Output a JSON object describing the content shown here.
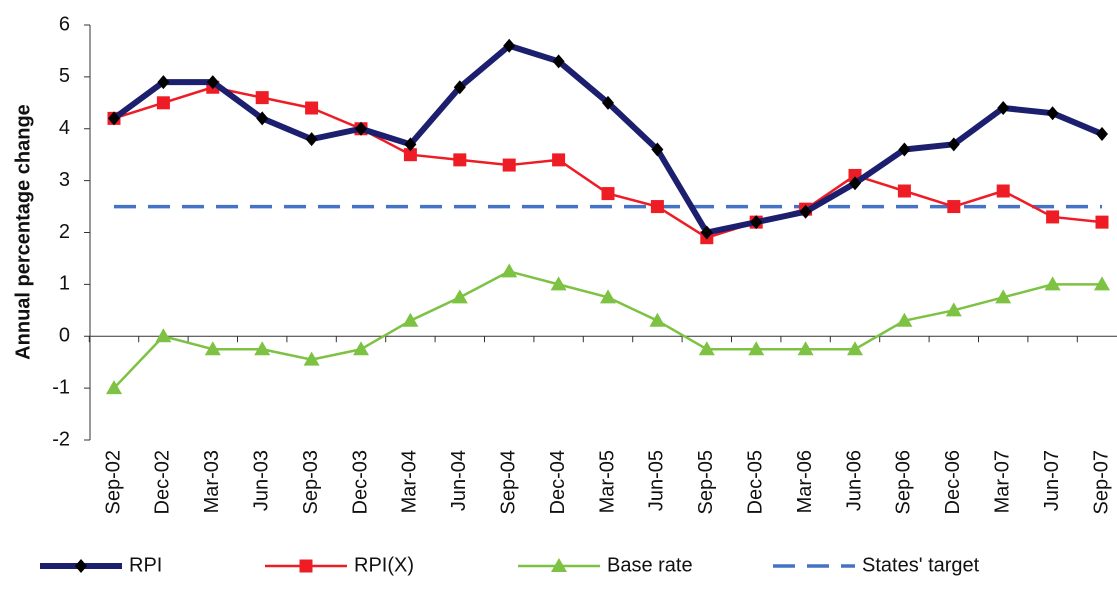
{
  "chart_data": {
    "type": "line",
    "y_label": "Annual percentage change",
    "categories": [
      "Sep-02",
      "Dec-02",
      "Mar-03",
      "Jun-03",
      "Sep-03",
      "Dec-03",
      "Mar-04",
      "Jun-04",
      "Sep-04",
      "Dec-04",
      "Mar-05",
      "Jun-05",
      "Sep-05",
      "Dec-05",
      "Mar-06",
      "Jun-06",
      "Sep-06",
      "Dec-06",
      "Mar-07",
      "Jun-07",
      "Sep-07"
    ],
    "series": [
      {
        "name": "RPI",
        "color": "#1c1f6e",
        "marker": "diamond",
        "marker_color": "#000000",
        "width": 6,
        "values": [
          4.2,
          4.9,
          4.9,
          4.2,
          3.8,
          4.0,
          3.7,
          4.8,
          5.6,
          5.3,
          4.5,
          3.6,
          2.0,
          2.2,
          2.4,
          2.95,
          3.6,
          3.7,
          4.4,
          4.3,
          3.9
        ]
      },
      {
        "name": "RPI(X)",
        "color": "#ee1c25",
        "marker": "square",
        "marker_color": "#ee1c25",
        "width": 2.5,
        "values": [
          4.2,
          4.5,
          4.8,
          4.6,
          4.4,
          4.0,
          3.5,
          3.4,
          3.3,
          3.4,
          2.75,
          2.5,
          1.9,
          2.2,
          2.45,
          3.1,
          2.8,
          2.5,
          2.8,
          2.3,
          2.2
        ]
      },
      {
        "name": "Base rate",
        "color": "#7dc242",
        "marker": "triangle",
        "marker_color": "#7dc242",
        "width": 2.5,
        "values": [
          -1,
          0,
          -0.25,
          -0.25,
          -0.45,
          -0.25,
          0.3,
          0.75,
          1.25,
          1.0,
          0.75,
          0.3,
          -0.25,
          -0.25,
          -0.25,
          -0.25,
          0.3,
          0.5,
          0.75,
          1.0,
          1.0
        ]
      },
      {
        "name": "States' target",
        "color": "#4472c4",
        "marker": "none",
        "dashed": true,
        "width": 3.5,
        "values": [
          2.5,
          2.5,
          2.5,
          2.5,
          2.5,
          2.5,
          2.5,
          2.5,
          2.5,
          2.5,
          2.5,
          2.5,
          2.5,
          2.5,
          2.5,
          2.5,
          2.5,
          2.5,
          2.5,
          2.5,
          2.5
        ]
      }
    ],
    "ylim": [
      -2,
      6
    ],
    "yticks": [
      -2,
      -1,
      0,
      1,
      2,
      3,
      4,
      5,
      6
    ]
  }
}
